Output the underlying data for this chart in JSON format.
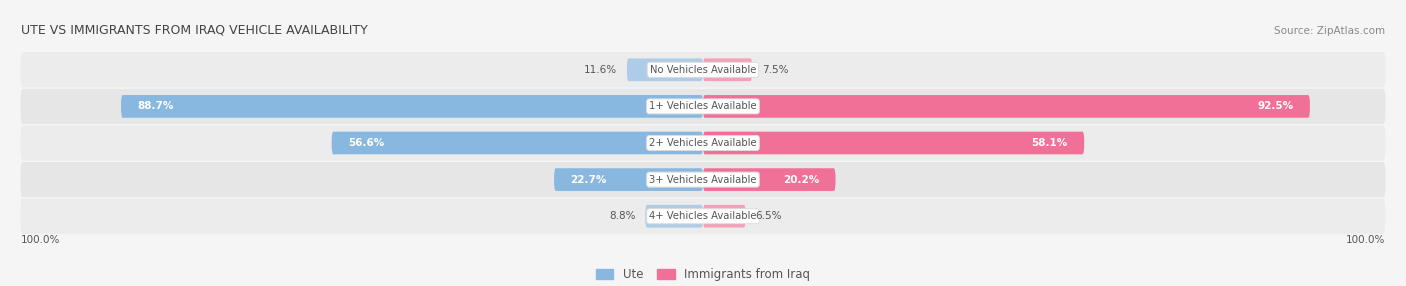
{
  "title": "UTE VS IMMIGRANTS FROM IRAQ VEHICLE AVAILABILITY",
  "source": "Source: ZipAtlas.com",
  "categories": [
    "No Vehicles Available",
    "1+ Vehicles Available",
    "2+ Vehicles Available",
    "3+ Vehicles Available",
    "4+ Vehicles Available"
  ],
  "ute_values": [
    11.6,
    88.7,
    56.6,
    22.7,
    8.8
  ],
  "iraq_values": [
    7.5,
    92.5,
    58.1,
    20.2,
    6.5
  ],
  "ute_color": "#88b8df",
  "iraq_color": "#f07098",
  "ute_color_light": "#aecce8",
  "iraq_color_light": "#f4a0b8",
  "ute_label": "Ute",
  "iraq_label": "Immigrants from Iraq",
  "bar_height": 0.62,
  "label_100_left": "100.0%",
  "label_100_right": "100.0%",
  "max_val": 100.0,
  "threshold_inside": 20.0,
  "bg_light": "#efefef",
  "bg_dark": "#e4e4e4",
  "title_color": "#444444",
  "source_color": "#888888",
  "label_color_dark": "#555555",
  "label_color_white": "#ffffff"
}
